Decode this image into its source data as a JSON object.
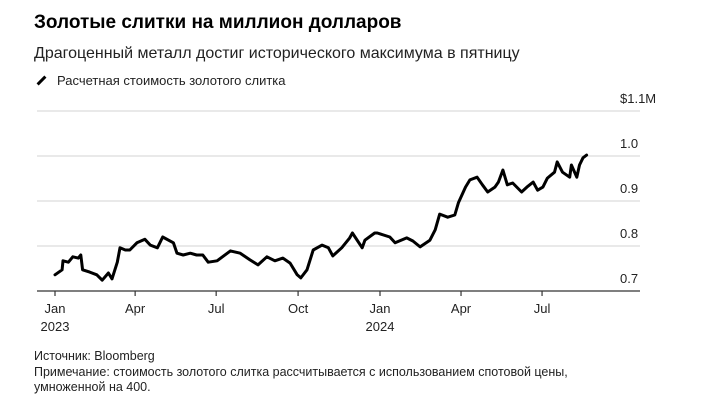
{
  "title": "Золотые слитки на миллион долларов",
  "subtitle": "Драгоценный металл достиг исторического максимума в пятницу",
  "footer": {
    "source": "Источник: Bloomberg",
    "note": "Примечание: стоимость золотого слитка рассчитывается с использованием спотовой цены, умноженной на 400."
  },
  "chart_data": {
    "type": "line",
    "title": "Золотые слитки на миллион долларов",
    "xlabel": "",
    "ylabel": "",
    "ylim": [
      0.7,
      1.1
    ],
    "y_unit_label": "$1.1M",
    "yticks": [
      {
        "value": 1.1,
        "label": "$1.1M"
      },
      {
        "value": 1.0,
        "label": "1.0"
      },
      {
        "value": 0.9,
        "label": "0.9"
      },
      {
        "value": 0.8,
        "label": "0.8"
      },
      {
        "value": 0.7,
        "label": "0.7"
      }
    ],
    "xticks": [
      {
        "date": "2023-01-01",
        "label": "Jan",
        "year": "2023"
      },
      {
        "date": "2023-04-01",
        "label": "Apr",
        "year": ""
      },
      {
        "date": "2023-07-01",
        "label": "Jul",
        "year": ""
      },
      {
        "date": "2023-10-01",
        "label": "Oct",
        "year": ""
      },
      {
        "date": "2024-01-01",
        "label": "Jan",
        "year": "2024"
      },
      {
        "date": "2024-04-01",
        "label": "Apr",
        "year": ""
      },
      {
        "date": "2024-07-01",
        "label": "Jul",
        "year": ""
      }
    ],
    "grid": true,
    "legend": "top-left",
    "series": [
      {
        "name": "Расчетная стоимость золотого слитка",
        "color": "#000000",
        "x": [
          "2023-01-01",
          "2023-01-09",
          "2023-01-10",
          "2023-01-16",
          "2023-01-21",
          "2023-01-27",
          "2023-01-30",
          "2023-02-01",
          "2023-02-09",
          "2023-02-17",
          "2023-02-23",
          "2023-03-02",
          "2023-03-06",
          "2023-03-12",
          "2023-03-15",
          "2023-03-21",
          "2023-03-26",
          "2023-04-03",
          "2023-04-12",
          "2023-04-18",
          "2023-04-26",
          "2023-05-02",
          "2023-05-14",
          "2023-05-18",
          "2023-05-25",
          "2023-06-02",
          "2023-06-09",
          "2023-06-16",
          "2023-06-22",
          "2023-07-02",
          "2023-07-17",
          "2023-07-28",
          "2023-08-08",
          "2023-08-17",
          "2023-08-27",
          "2023-09-05",
          "2023-09-14",
          "2023-09-22",
          "2023-09-30",
          "2023-10-04",
          "2023-10-11",
          "2023-10-18",
          "2023-10-28",
          "2023-11-04",
          "2023-11-09",
          "2023-11-19",
          "2023-11-28",
          "2023-12-01",
          "2023-12-12",
          "2023-12-15",
          "2023-12-26",
          "2023-12-29",
          "2024-01-12",
          "2024-01-18",
          "2024-01-31",
          "2024-02-07",
          "2024-02-15",
          "2024-02-26",
          "2024-03-03",
          "2024-03-08",
          "2024-03-17",
          "2024-03-25",
          "2024-03-29",
          "2024-04-06",
          "2024-04-11",
          "2024-04-19",
          "2024-04-25",
          "2024-05-01",
          "2024-05-09",
          "2024-05-13",
          "2024-05-18",
          "2024-05-23",
          "2024-05-29",
          "2024-06-08",
          "2024-06-14",
          "2024-06-21",
          "2024-06-26",
          "2024-07-02",
          "2024-07-07",
          "2024-07-15",
          "2024-07-18",
          "2024-07-24",
          "2024-08-01",
          "2024-08-03",
          "2024-08-09",
          "2024-08-12",
          "2024-08-16",
          "2024-08-20"
        ],
        "values": [
          0.736,
          0.747,
          0.767,
          0.764,
          0.776,
          0.773,
          0.78,
          0.747,
          0.742,
          0.736,
          0.724,
          0.74,
          0.727,
          0.764,
          0.796,
          0.791,
          0.791,
          0.807,
          0.815,
          0.802,
          0.796,
          0.82,
          0.807,
          0.784,
          0.78,
          0.784,
          0.78,
          0.78,
          0.764,
          0.767,
          0.789,
          0.784,
          0.769,
          0.758,
          0.776,
          0.767,
          0.773,
          0.762,
          0.736,
          0.729,
          0.747,
          0.791,
          0.802,
          0.796,
          0.778,
          0.796,
          0.818,
          0.829,
          0.796,
          0.813,
          0.829,
          0.829,
          0.82,
          0.807,
          0.818,
          0.811,
          0.798,
          0.813,
          0.836,
          0.871,
          0.864,
          0.869,
          0.896,
          0.931,
          0.947,
          0.953,
          0.936,
          0.92,
          0.931,
          0.942,
          0.969,
          0.936,
          0.94,
          0.92,
          0.931,
          0.942,
          0.924,
          0.931,
          0.951,
          0.964,
          0.987,
          0.964,
          0.953,
          0.98,
          0.953,
          0.98,
          0.996,
          1.002
        ]
      }
    ]
  }
}
